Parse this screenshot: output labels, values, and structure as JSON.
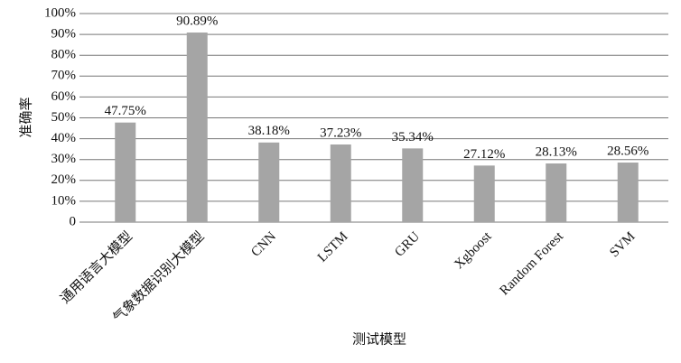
{
  "chart_data": {
    "type": "bar",
    "x_label": "测试模型",
    "y_label": "准确率",
    "categories": [
      "通用语言大模型",
      "气象数据识别大模型",
      "CNN",
      "LSTM",
      "GRU",
      "Xgboost",
      "Random Forest",
      "SVM"
    ],
    "values": [
      47.75,
      90.89,
      38.18,
      37.23,
      35.34,
      27.12,
      28.13,
      28.56
    ],
    "value_labels": [
      "47.75%",
      "90.89%",
      "38.18%",
      "37.23%",
      "35.34%",
      "27.12%",
      "28.13%",
      "28.56%"
    ],
    "color": "#a5a5a5",
    "ylim": [
      0,
      100
    ],
    "yticks": [
      0,
      {
        "value": 10,
        "label": "10%"
      },
      {
        "value": 20,
        "label": "20%"
      },
      {
        "value": 30,
        "label": "30%"
      },
      {
        "value": 40,
        "label": "40%"
      },
      {
        "value": 50,
        "label": "50%"
      },
      {
        "value": 60,
        "label": "60%"
      },
      {
        "value": 70,
        "label": "70%"
      },
      {
        "value": 80,
        "label": "80%"
      },
      {
        "value": 90,
        "label": "90%"
      },
      {
        "value": 100,
        "label": "100%"
      }
    ],
    "grid": true
  }
}
